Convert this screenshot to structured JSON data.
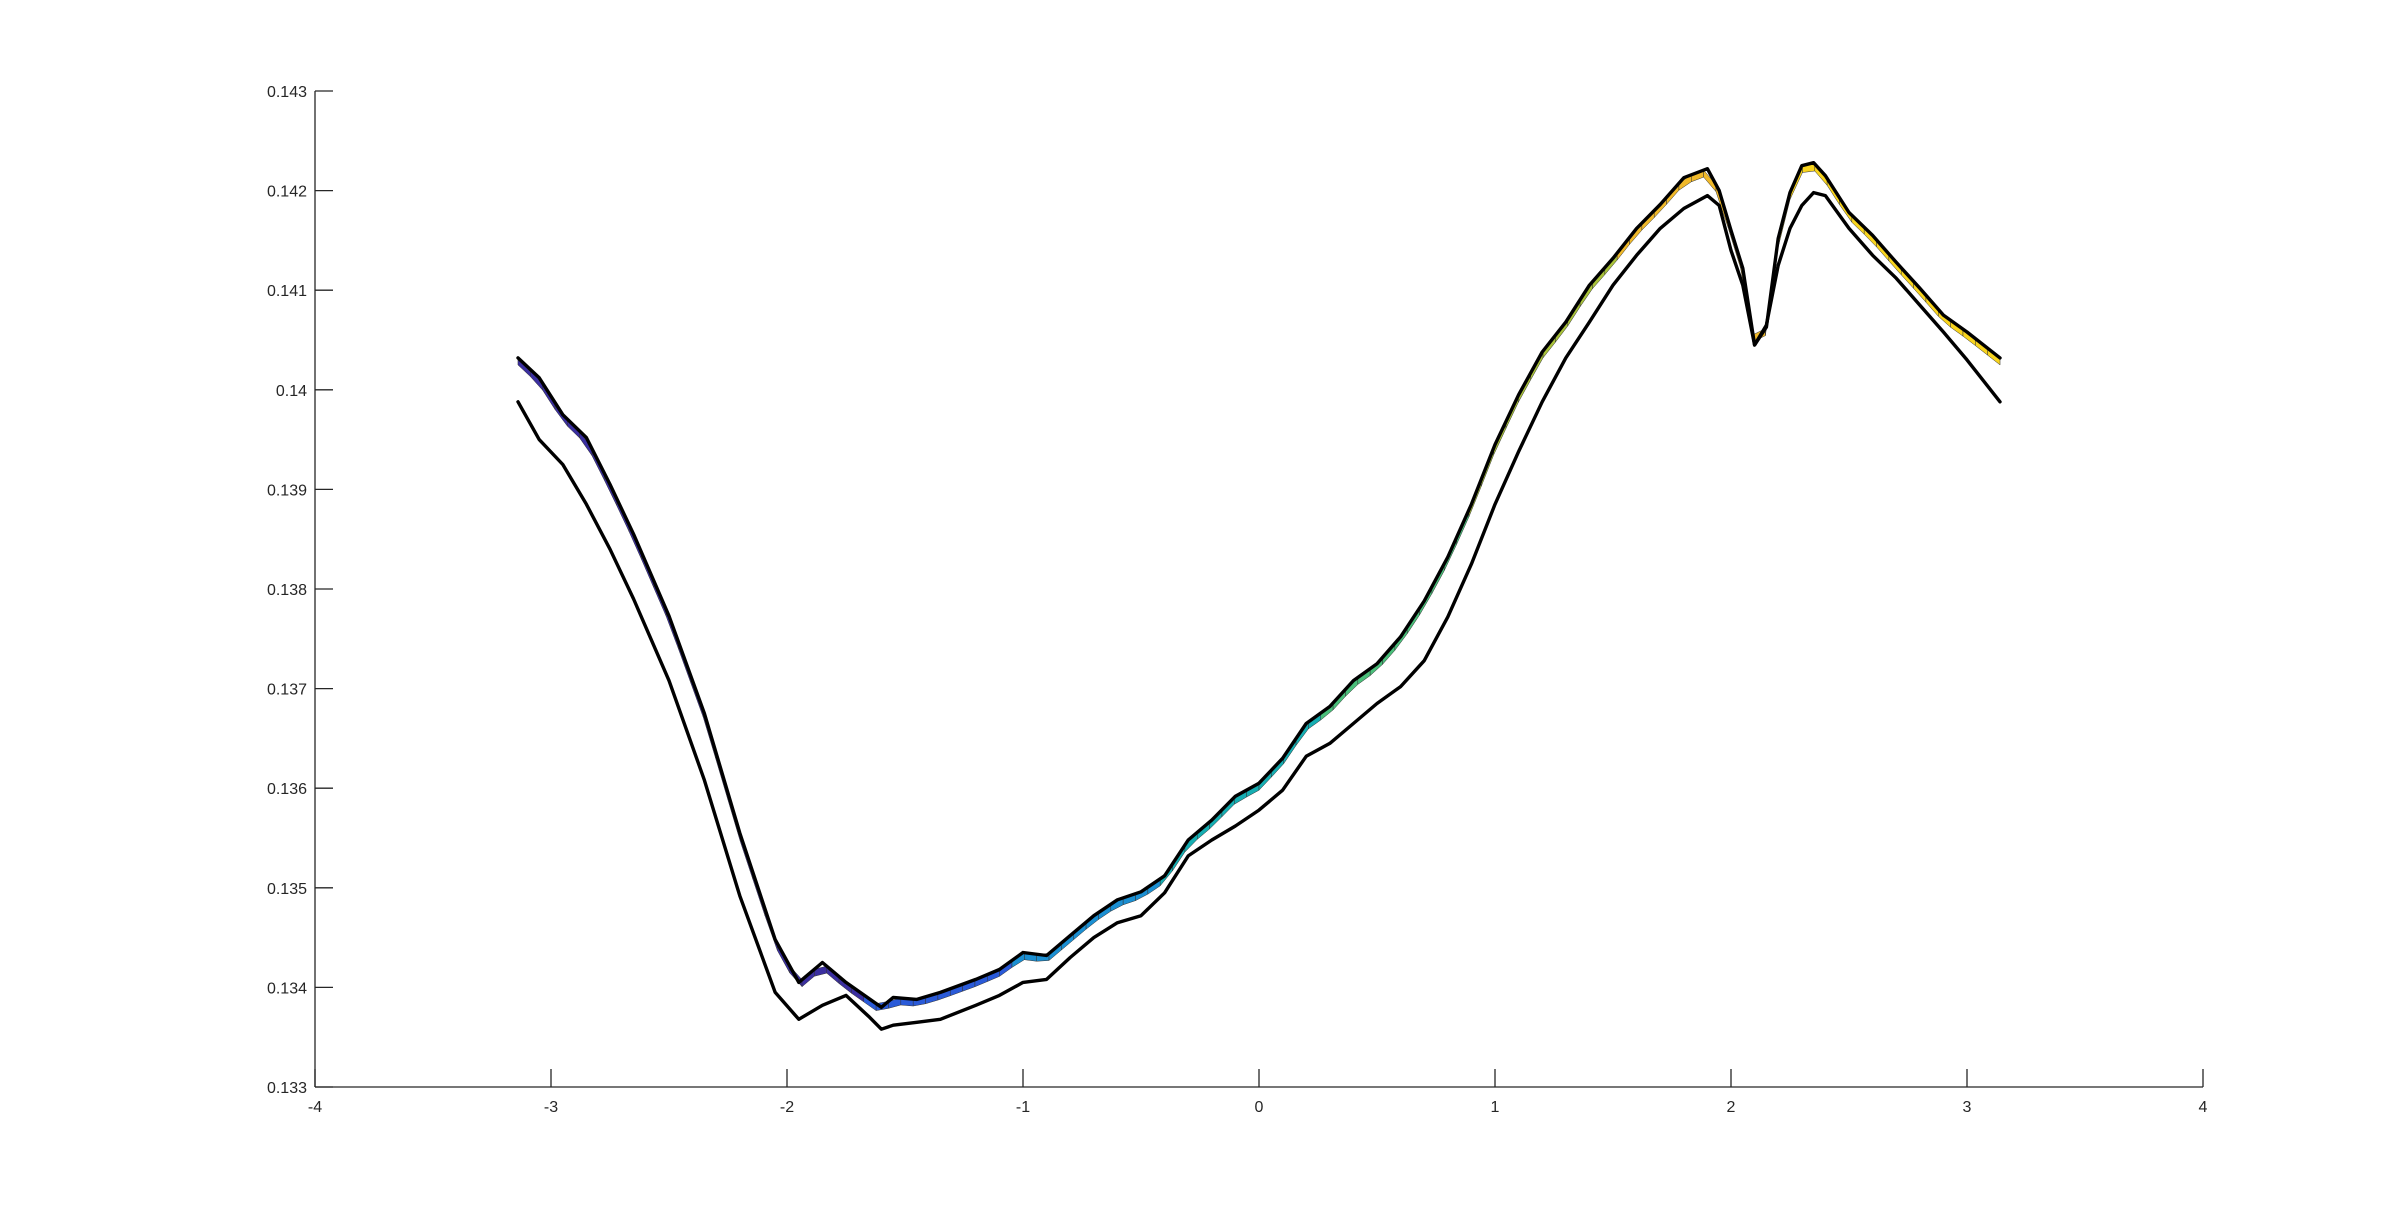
{
  "chart_data": {
    "type": "line",
    "title": "",
    "xlabel": "",
    "ylabel": "",
    "xlim": [
      -4,
      4
    ],
    "ylim": [
      0.133,
      0.143
    ],
    "grid": false,
    "x_ticks": [
      -4,
      -3,
      -2,
      -1,
      0,
      1,
      2,
      3,
      4
    ],
    "x_tick_labels": [
      "-4",
      "-3",
      "-2",
      "-1",
      "0",
      "1",
      "2",
      "3",
      "4"
    ],
    "y_ticks": [
      0.133,
      0.134,
      0.135,
      0.136,
      0.137,
      0.138,
      0.139,
      0.14,
      0.141,
      0.142,
      0.143
    ],
    "y_tick_labels": [
      "0.133",
      "0.134",
      "0.135",
      "0.136",
      "0.137",
      "0.138",
      "0.139",
      "0.14",
      "0.141",
      "0.142",
      "0.143"
    ],
    "series": [
      {
        "color": "#000000",
        "x": [
          -3.14,
          -3.05,
          -2.95,
          -2.85,
          -2.75,
          -2.65,
          -2.5,
          -2.35,
          -2.2,
          -2.05,
          -1.95,
          -1.85,
          -1.75,
          -1.6,
          -1.55,
          -1.45,
          -1.35,
          -1.2,
          -1.1,
          -1.0,
          -0.9,
          -0.8,
          -0.7,
          -0.6,
          -0.5,
          -0.4,
          -0.3,
          -0.2,
          -0.1,
          0.0,
          0.1,
          0.2,
          0.3,
          0.4,
          0.5,
          0.6,
          0.7,
          0.8,
          0.9,
          1.0,
          1.1,
          1.2,
          1.3,
          1.4,
          1.5,
          1.6,
          1.7,
          1.8,
          1.9,
          1.95,
          2.0,
          2.05,
          2.1,
          2.15,
          2.2,
          2.25,
          2.3,
          2.35,
          2.4,
          2.5,
          2.6,
          2.7,
          2.8,
          2.9,
          3.0,
          3.14
        ],
        "y": [
          0.14032,
          0.14012,
          0.13975,
          0.13952,
          0.13905,
          0.13855,
          0.13773,
          0.13675,
          0.13555,
          0.13448,
          0.13405,
          0.13425,
          0.13405,
          0.1338,
          0.1339,
          0.13388,
          0.13395,
          0.13408,
          0.13418,
          0.13435,
          0.13432,
          0.13452,
          0.13472,
          0.13488,
          0.13496,
          0.13512,
          0.13548,
          0.13568,
          0.13592,
          0.13605,
          0.1363,
          0.13665,
          0.13682,
          0.13708,
          0.13725,
          0.13752,
          0.13788,
          0.13832,
          0.13885,
          0.13945,
          0.13995,
          0.14038,
          0.14068,
          0.14105,
          0.14132,
          0.14162,
          0.14186,
          0.14213,
          0.14222,
          0.142,
          0.1416,
          0.14122,
          0.14045,
          0.14063,
          0.14152,
          0.14198,
          0.14225,
          0.14228,
          0.14215,
          0.14178,
          0.14155,
          0.14128,
          0.14102,
          0.14075,
          0.14058,
          0.14032
        ]
      },
      {
        "color": "#000000",
        "x": [
          -3.14,
          -3.05,
          -2.95,
          -2.85,
          -2.75,
          -2.65,
          -2.5,
          -2.35,
          -2.2,
          -2.05,
          -1.95,
          -1.85,
          -1.75,
          -1.65,
          -1.6,
          -1.55,
          -1.45,
          -1.35,
          -1.2,
          -1.1,
          -1.0,
          -0.9,
          -0.8,
          -0.7,
          -0.6,
          -0.5,
          -0.4,
          -0.3,
          -0.2,
          -0.1,
          0.0,
          0.1,
          0.2,
          0.3,
          0.4,
          0.5,
          0.6,
          0.7,
          0.8,
          0.9,
          1.0,
          1.1,
          1.2,
          1.3,
          1.4,
          1.5,
          1.6,
          1.7,
          1.8,
          1.9,
          1.95,
          2.0,
          2.05,
          2.1,
          2.15,
          2.2,
          2.25,
          2.3,
          2.35,
          2.4,
          2.5,
          2.6,
          2.7,
          2.8,
          2.9,
          3.0,
          3.14
        ],
        "y": [
          0.13988,
          0.1395,
          0.13925,
          0.13885,
          0.1384,
          0.1379,
          0.13708,
          0.13608,
          0.13492,
          0.13395,
          0.13368,
          0.13382,
          0.13392,
          0.1337,
          0.13358,
          0.13362,
          0.13365,
          0.13368,
          0.13382,
          0.13392,
          0.13405,
          0.13408,
          0.1343,
          0.1345,
          0.13465,
          0.13472,
          0.13495,
          0.13532,
          0.13548,
          0.13562,
          0.13578,
          0.13598,
          0.13632,
          0.13645,
          0.13665,
          0.13685,
          0.13702,
          0.13728,
          0.13772,
          0.13825,
          0.13885,
          0.13938,
          0.13988,
          0.14032,
          0.14068,
          0.14105,
          0.14135,
          0.14162,
          0.14182,
          0.14195,
          0.14185,
          0.1414,
          0.14105,
          0.14045,
          0.14065,
          0.14125,
          0.14162,
          0.14185,
          0.14198,
          0.14195,
          0.14162,
          0.14135,
          0.14112,
          0.14085,
          0.14058,
          0.1403,
          0.13988
        ]
      }
    ]
  }
}
